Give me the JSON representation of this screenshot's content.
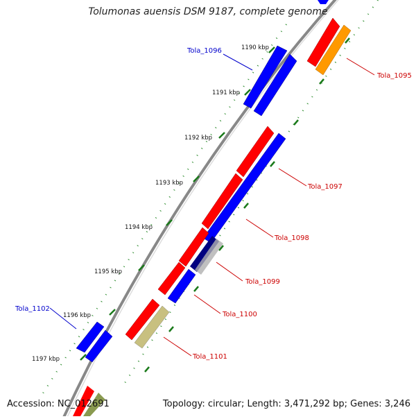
{
  "title": "Tolumonas auensis DSM 9187, complete genome",
  "accession": "Accession: NC_012691",
  "summary": "Topology: circular; Length: 3,471,292 bp; Genes: 3,246",
  "colors": {
    "forward_gene": "#ff0000",
    "reverse_gene": "#0000ff",
    "label_red": "#cc0000",
    "label_blue": "#0000cc",
    "tick_green": "#008000",
    "orange_gene": "#ff9900",
    "khaki_gene": "#c8c080",
    "backbone": "#888888"
  },
  "ticks": [
    "1190 kbp",
    "1191 kbp",
    "1192 kbp",
    "1193 kbp",
    "1194 kbp",
    "1195 kbp",
    "1196 kbp",
    "1197 kbp"
  ],
  "gene_labels": [
    {
      "name": "Tola_1095",
      "strand": "forward"
    },
    {
      "name": "Tola_1096",
      "strand": "reverse"
    },
    {
      "name": "Tola_1097",
      "strand": "forward"
    },
    {
      "name": "Tola_1098",
      "strand": "forward"
    },
    {
      "name": "Tola_1099",
      "strand": "forward"
    },
    {
      "name": "Tola_1100",
      "strand": "forward"
    },
    {
      "name": "Tola_1101",
      "strand": "forward"
    },
    {
      "name": "Tola_1102",
      "strand": "reverse"
    }
  ]
}
